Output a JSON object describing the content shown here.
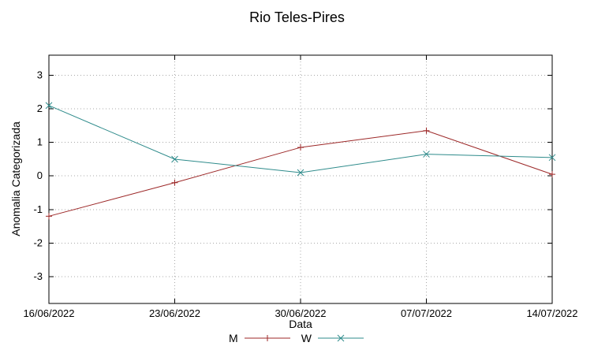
{
  "chart_data": {
    "type": "line",
    "title": "Rio Teles-Pires",
    "xlabel": "Data",
    "ylabel": "Anomalia Categorizada",
    "categories": [
      "16/06/2022",
      "23/06/2022",
      "30/06/2022",
      "07/07/2022",
      "14/07/2022"
    ],
    "series": [
      {
        "name": "M",
        "color": "#9c2727",
        "marker": "plus",
        "values": [
          -1.2,
          -0.2,
          0.85,
          1.35,
          0.05
        ]
      },
      {
        "name": "W",
        "color": "#2e8b8b",
        "marker": "cross",
        "values": [
          2.1,
          0.5,
          0.1,
          0.65,
          0.55
        ]
      }
    ],
    "yticks": [
      -3,
      -2,
      -1,
      0,
      1,
      2,
      3
    ],
    "ylim": [
      -3.8,
      3.6
    ],
    "grid": true,
    "legend_position": "bottom-center"
  },
  "colors": {
    "background": "#ffffff",
    "plot_border": "#000000",
    "grid": "#a8a8a8",
    "text": "#000000"
  }
}
